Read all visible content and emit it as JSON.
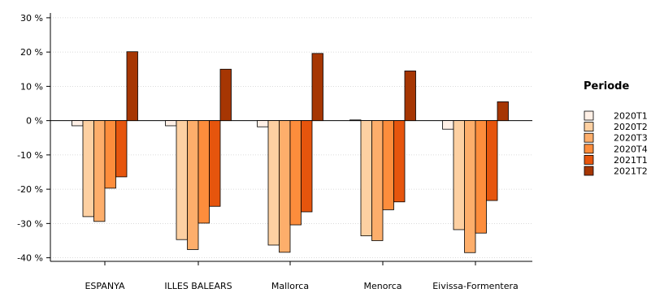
{
  "chart_data": {
    "type": "bar",
    "title": "",
    "xlabel": "",
    "ylabel": "",
    "categories": [
      "ESPANYA",
      "ILLES BALEARS",
      "Mallorca",
      "Menorca",
      "Eivissa-Formentera"
    ],
    "series": [
      {
        "name": "2020T1",
        "values": [
          -1.5,
          -1.5,
          -1.8,
          0.2,
          -2.5
        ],
        "color": "#fff0e6"
      },
      {
        "name": "2020T2",
        "values": [
          -28.0,
          -34.7,
          -36.3,
          -33.6,
          -31.8
        ],
        "color": "#fdd0a2"
      },
      {
        "name": "2020T3",
        "values": [
          -29.4,
          -37.6,
          -38.4,
          -35.0,
          -38.5
        ],
        "color": "#fdae6b"
      },
      {
        "name": "2020T4",
        "values": [
          -19.7,
          -29.9,
          -30.4,
          -26.0,
          -32.8
        ],
        "color": "#fd8d3c"
      },
      {
        "name": "2021T1",
        "values": [
          -16.4,
          -25.0,
          -26.6,
          -23.7,
          -23.3
        ],
        "color": "#e6550d"
      },
      {
        "name": "2021T2",
        "values": [
          20.1,
          15.0,
          19.6,
          14.5,
          5.5
        ],
        "color": "#a63603"
      }
    ],
    "ylim": [
      -40,
      30
    ],
    "yticks": [
      30,
      20,
      10,
      0,
      -10,
      -20,
      -30,
      -40
    ],
    "ytick_labels": [
      "30 %",
      "20 %",
      "10 %",
      "0 %",
      "-10 %",
      "-20 %",
      "-30 %",
      "-40 %"
    ],
    "grid": true,
    "legend": {
      "title": "Periode",
      "position": "right"
    }
  }
}
